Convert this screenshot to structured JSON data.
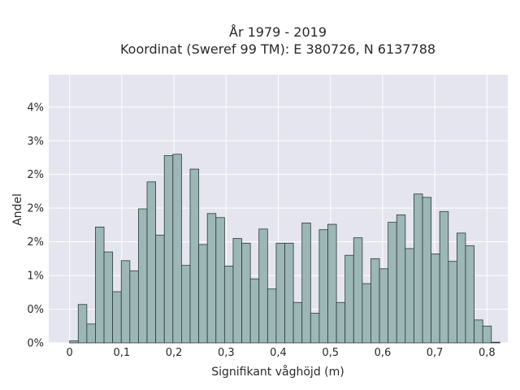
{
  "chart_data": {
    "type": "bar",
    "title_line1": "År 1979 - 2019",
    "title_line2": "Koordinat (Sweref 99 TM): E 380726, N 6137788",
    "xlabel": "Signifikant våghöjd (m)",
    "ylabel": "Andel",
    "xlim": [
      -0.04,
      0.84
    ],
    "ylim": [
      0,
      0.0398
    ],
    "bin_start": 0.0,
    "bin_width": 0.0165,
    "values": [
      0.0003,
      0.0057,
      0.0028,
      0.0172,
      0.0135,
      0.0076,
      0.0122,
      0.0107,
      0.0199,
      0.0239,
      0.016,
      0.0278,
      0.028,
      0.0115,
      0.0258,
      0.0146,
      0.0192,
      0.0186,
      0.0114,
      0.0155,
      0.0148,
      0.0095,
      0.0169,
      0.008,
      0.0148,
      0.0148,
      0.006,
      0.0178,
      0.0044,
      0.0168,
      0.0176,
      0.006,
      0.013,
      0.0156,
      0.0088,
      0.0125,
      0.011,
      0.0179,
      0.019,
      0.014,
      0.0221,
      0.0216,
      0.0132,
      0.0195,
      0.0121,
      0.0163,
      0.0144,
      0.0034,
      0.0025,
      0.0001
    ],
    "xticks": [
      {
        "value": 0.0,
        "label": "0"
      },
      {
        "value": 0.1,
        "label": "0,1"
      },
      {
        "value": 0.2,
        "label": "0,2"
      },
      {
        "value": 0.3,
        "label": "0,3"
      },
      {
        "value": 0.4,
        "label": "0,4"
      },
      {
        "value": 0.5,
        "label": "0,5"
      },
      {
        "value": 0.6,
        "label": "0,6"
      },
      {
        "value": 0.7,
        "label": "0,7"
      },
      {
        "value": 0.8,
        "label": "0,8"
      }
    ],
    "yticks": [
      {
        "value": 0.0,
        "label": "0%"
      },
      {
        "value": 0.005,
        "label": "0%"
      },
      {
        "value": 0.01,
        "label": "1%"
      },
      {
        "value": 0.015,
        "label": "2%"
      },
      {
        "value": 0.02,
        "label": "2%"
      },
      {
        "value": 0.025,
        "label": "2%"
      },
      {
        "value": 0.03,
        "label": "3%"
      },
      {
        "value": 0.035,
        "label": "4%"
      }
    ],
    "grid": true,
    "colors": {
      "plot_background": "#e5e5ef",
      "bar_fill": "#9db6b6",
      "bar_edge": "#2b3a3a",
      "grid": "#ffffff"
    }
  }
}
